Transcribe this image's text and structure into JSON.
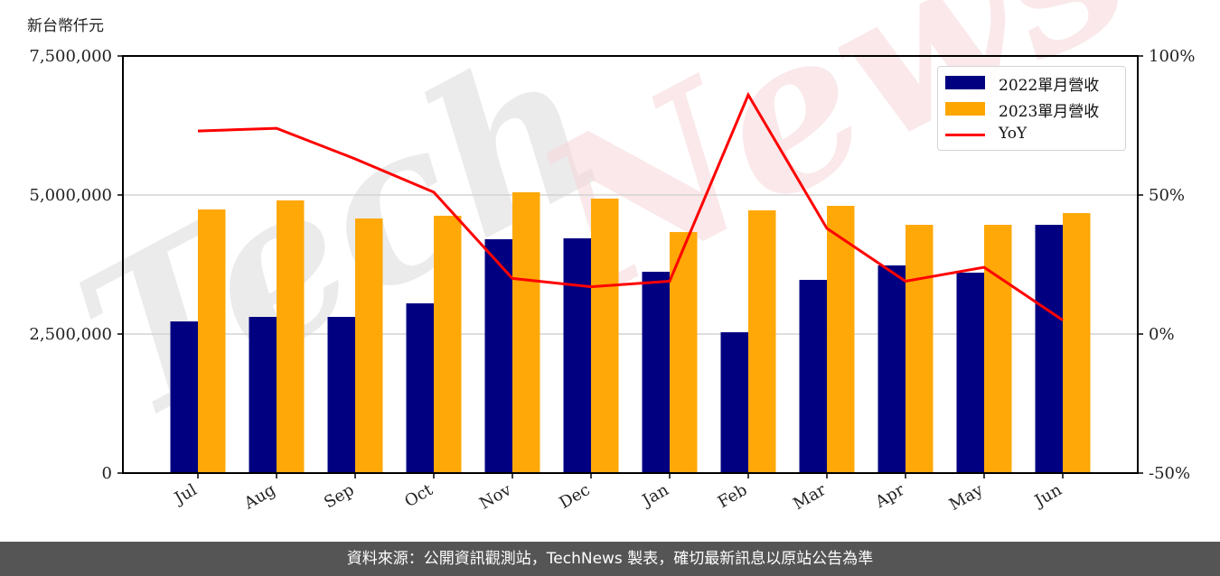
{
  "unit_label": "新台幣仟元",
  "legend": {
    "items": [
      {
        "label": "2022單月營收",
        "color": "#000080",
        "kind": "bar"
      },
      {
        "label": "2023單月營收",
        "color": "#FFA500",
        "kind": "bar"
      },
      {
        "label": "YoY",
        "color": "#FF0000",
        "kind": "line"
      }
    ]
  },
  "footer": {
    "text": "資料來源：公開資訊觀測站，TechNews 製表，確切最新訊息以原站公告為準"
  },
  "watermark": {
    "text_1": "Tech",
    "text_2": "News"
  },
  "chart_data": {
    "type": "bar",
    "title": "",
    "xlabel": "",
    "ylabel": "新台幣仟元",
    "y2label": "YoY",
    "categories": [
      "Jul",
      "Aug",
      "Sep",
      "Oct",
      "Nov",
      "Dec",
      "Jan",
      "Feb",
      "Mar",
      "Apr",
      "May",
      "Jun"
    ],
    "series": [
      {
        "name": "2022單月營收",
        "type": "bar",
        "axis": "left",
        "color": "#000080",
        "values": [
          2727000,
          2808000,
          2808000,
          3052000,
          4205000,
          4221000,
          3620000,
          2532000,
          3474000,
          3734000,
          3604000,
          4464000
        ]
      },
      {
        "name": "2023單月營收",
        "type": "bar",
        "axis": "left",
        "color": "#FFA500",
        "values": [
          4740000,
          4903000,
          4578000,
          4627000,
          5049000,
          4935000,
          4334000,
          4724000,
          4805000,
          4464000,
          4464000,
          4675000
        ]
      },
      {
        "name": "YoY",
        "type": "line",
        "axis": "right",
        "color": "#FF0000",
        "values": [
          73,
          74,
          63,
          51,
          20,
          17,
          19,
          86,
          38,
          19,
          24,
          5
        ]
      }
    ],
    "ylim": [
      0,
      7500000
    ],
    "yticks": [
      0,
      2500000,
      5000000,
      7500000
    ],
    "ytick_labels": [
      "0",
      "2,500,000",
      "5,000,000",
      "7,500,000"
    ],
    "y2lim": [
      -50,
      100
    ],
    "y2ticks": [
      -50,
      0,
      50,
      100
    ],
    "y2tick_labels": [
      "-50%",
      "0%",
      "50%",
      "100%"
    ],
    "grid": true,
    "legend_position": "upper right"
  }
}
